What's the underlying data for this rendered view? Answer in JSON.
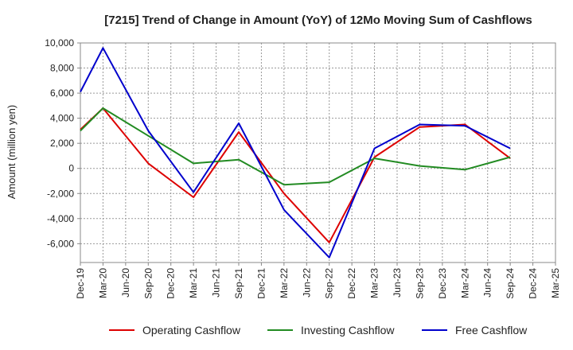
{
  "chart_data": {
    "type": "line",
    "title": "[7215]  Trend of Change in Amount (YoY) of 12Mo Moving Sum of Cashflows",
    "xlabel": "",
    "ylabel": "Amount (million yen)",
    "ylim": [
      -7500,
      10000
    ],
    "yticks": [
      10000,
      8000,
      6000,
      4000,
      2000,
      0,
      -2000,
      -4000,
      -6000
    ],
    "ytick_labels": [
      "10,000",
      "8,000",
      "6,000",
      "4,000",
      "2,000",
      "0",
      "-2,000",
      "-4,000",
      "-6,000"
    ],
    "grid": true,
    "legend_position": "bottom",
    "categories": [
      "Dec-19",
      "Mar-20",
      "Jun-20",
      "Sep-20",
      "Dec-20",
      "Mar-21",
      "Jun-21",
      "Sep-21",
      "Dec-21",
      "Mar-22",
      "Jun-22",
      "Sep-22",
      "Dec-22",
      "Mar-23",
      "Jun-23",
      "Sep-23",
      "Dec-23",
      "Mar-24",
      "Jun-24",
      "Sep-24",
      "Dec-24",
      "Mar-25"
    ],
    "series": [
      {
        "name": "Operating Cashflow",
        "color": "#dd0000",
        "values": [
          3100,
          4800,
          null,
          400,
          null,
          -2300,
          null,
          2900,
          null,
          -2000,
          null,
          -5900,
          null,
          900,
          null,
          3300,
          null,
          3500,
          null,
          800,
          null,
          null
        ]
      },
      {
        "name": "Investing Cashflow",
        "color": "#228b22",
        "values": [
          3000,
          4800,
          null,
          2600,
          null,
          400,
          null,
          700,
          null,
          -1300,
          null,
          -1100,
          null,
          800,
          null,
          200,
          null,
          -100,
          null,
          900,
          null,
          null
        ]
      },
      {
        "name": "Free Cashflow",
        "color": "#0000cc",
        "values": [
          6100,
          9600,
          null,
          3000,
          null,
          -1900,
          null,
          3600,
          null,
          -3300,
          null,
          -7100,
          null,
          1600,
          null,
          3500,
          null,
          3400,
          null,
          1600,
          null,
          null
        ]
      }
    ]
  }
}
